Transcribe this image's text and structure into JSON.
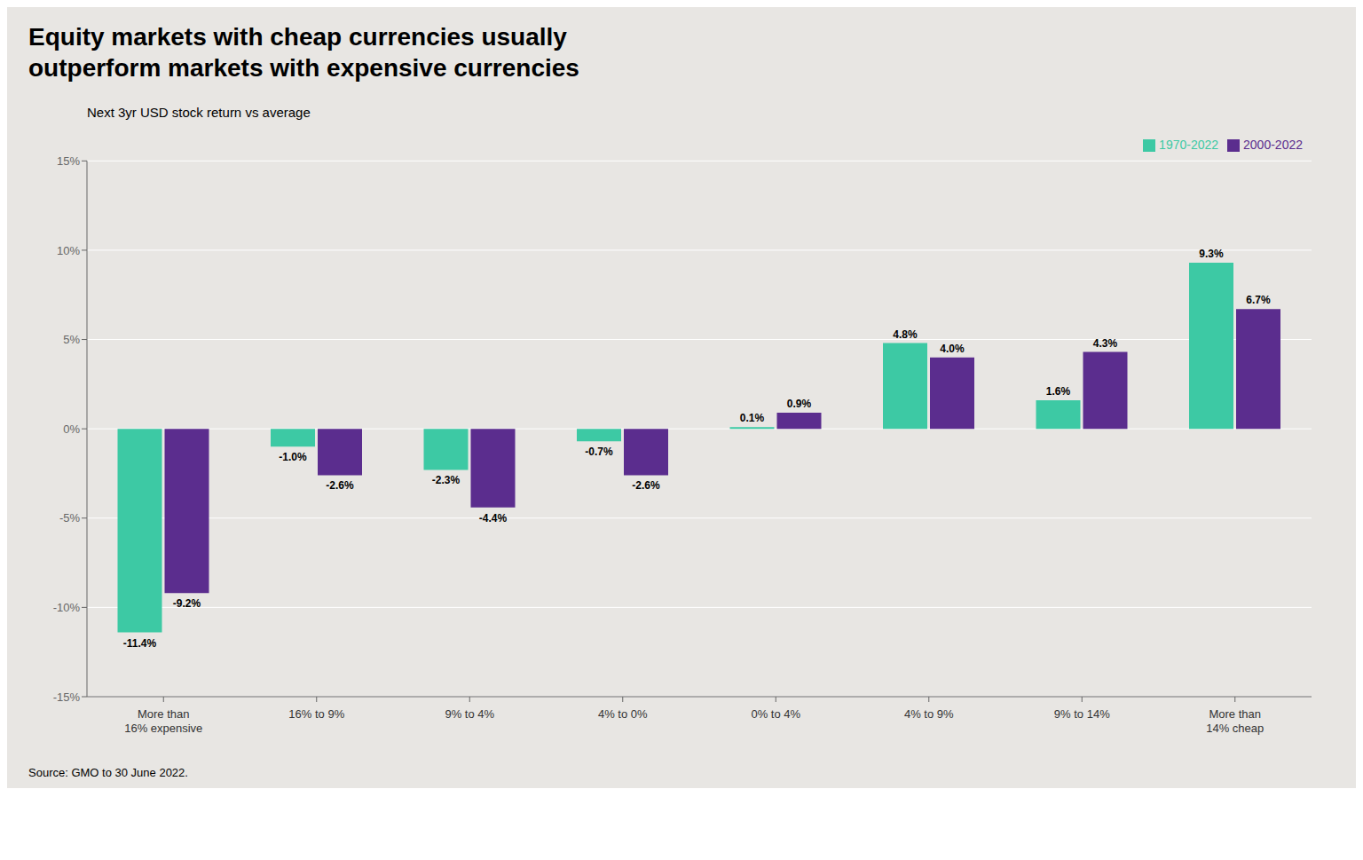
{
  "chart_data": {
    "type": "bar",
    "title": "Equity markets with cheap currencies usually\noutperform markets with expensive currencies",
    "subtitle": "Next 3yr USD stock return vs average",
    "annotations": [
      "Source: GMO to 30 June 2022."
    ],
    "categories": [
      "More than\n16% expensive",
      "16% to 9%",
      "9% to 4%",
      "4% to 0%",
      "0% to 4%",
      "4% to 9%",
      "9% to 14%",
      "More than\n14% cheap"
    ],
    "series": [
      {
        "name": "1970-2022",
        "color": "#3dc9a4",
        "values": [
          -11.4,
          -1.0,
          -2.3,
          -0.7,
          0.1,
          4.8,
          1.6,
          9.3
        ],
        "value_labels": [
          "-11.4%",
          "-1.0%",
          "-2.3%",
          "-0.7%",
          "0.1%",
          "4.8%",
          "1.6%",
          "9.3%"
        ]
      },
      {
        "name": "2000-2022",
        "color": "#5b2d8e",
        "values": [
          -9.2,
          -2.6,
          -4.4,
          -2.6,
          0.9,
          4.0,
          4.3,
          6.7
        ],
        "value_labels": [
          "-9.2%",
          "-2.6%",
          "-4.4%",
          "-2.6%",
          "0.9%",
          "4.0%",
          "4.3%",
          "6.7%"
        ]
      }
    ],
    "ylim": [
      -15,
      15
    ],
    "yticks": [
      {
        "value": -15,
        "label": "-15%"
      },
      {
        "value": -10,
        "label": "-10%"
      },
      {
        "value": -5,
        "label": "-5%"
      },
      {
        "value": 0,
        "label": "0%"
      },
      {
        "value": 5,
        "label": "5%"
      },
      {
        "value": 10,
        "label": "10%"
      },
      {
        "value": 15,
        "label": "15%"
      }
    ],
    "grid": true,
    "legend": "top-right",
    "data_labels": true
  }
}
